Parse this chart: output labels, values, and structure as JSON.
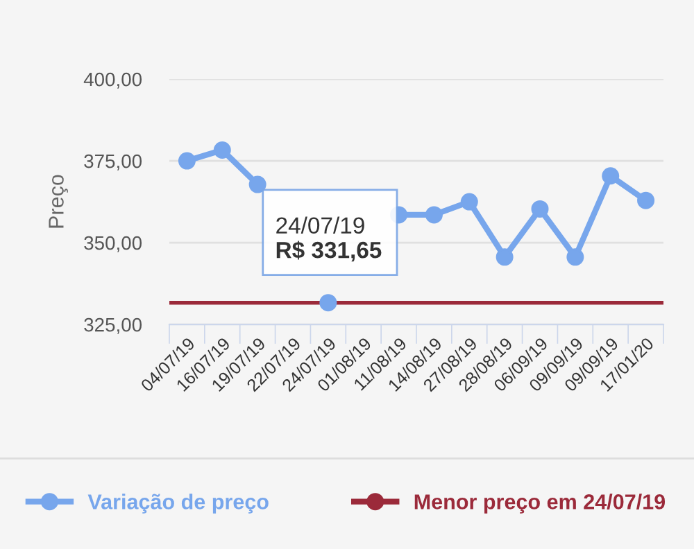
{
  "chart_data": {
    "type": "line",
    "ylabel": "Preço",
    "categories": [
      "04/07/19",
      "16/07/19",
      "19/07/19",
      "22/07/19",
      "24/07/19",
      "01/08/19",
      "11/08/19",
      "14/08/19",
      "27/08/19",
      "28/08/19",
      "06/09/19",
      "09/09/19",
      "09/09/19",
      "17/01/20"
    ],
    "series": [
      {
        "name": "Variação de preço",
        "color": "#77a6ec",
        "values": [
          375,
          378.3,
          367.8,
          null,
          331.65,
          null,
          358.5,
          358.5,
          362.5,
          345.6,
          360.3,
          345.6,
          370.4,
          362.9
        ]
      }
    ],
    "ylim": [
      325,
      400
    ],
    "yticks": [
      {
        "value": 325,
        "label": "325,00"
      },
      {
        "value": 350,
        "label": "350,00"
      },
      {
        "value": 375,
        "label": "375,00"
      },
      {
        "value": 400,
        "label": "400,00"
      }
    ],
    "ref_lines": [
      {
        "axis": "y",
        "value": 331.65,
        "label": "Menor preço em 24/07/19",
        "color": "#9b2a3a"
      }
    ],
    "annotations": [
      {
        "text": "24/07/19\nR$ 331,65",
        "x": "24/07/19",
        "y": 331.65
      }
    ],
    "grid": "y",
    "legend": "bottom",
    "marker": "circle",
    "line_style": "solid"
  }
}
